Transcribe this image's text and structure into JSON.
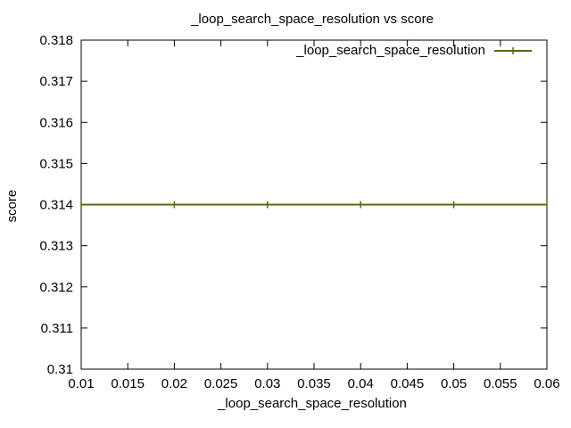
{
  "chart_data": {
    "type": "line",
    "title": "_loop_search_space_resolution vs score",
    "xlabel": "_loop_search_space_resolution",
    "ylabel": "score",
    "xlim": [
      0.01,
      0.06
    ],
    "ylim": [
      0.31,
      0.318
    ],
    "x_ticks": [
      "0.01",
      "0.015",
      "0.02",
      "0.025",
      "0.03",
      "0.035",
      "0.04",
      "0.045",
      "0.05",
      "0.055",
      "0.06"
    ],
    "y_ticks": [
      "0.31",
      "0.311",
      "0.312",
      "0.313",
      "0.314",
      "0.315",
      "0.316",
      "0.317",
      "0.318"
    ],
    "grid": false,
    "legend_position": "top-right",
    "series": [
      {
        "name": "_loop_search_space_resolution",
        "color": "#556b00",
        "marker": "vertical-tick",
        "x": [
          0.01,
          0.02,
          0.03,
          0.04,
          0.05,
          0.06
        ],
        "y": [
          0.314,
          0.314,
          0.314,
          0.314,
          0.314,
          0.314
        ]
      }
    ]
  }
}
